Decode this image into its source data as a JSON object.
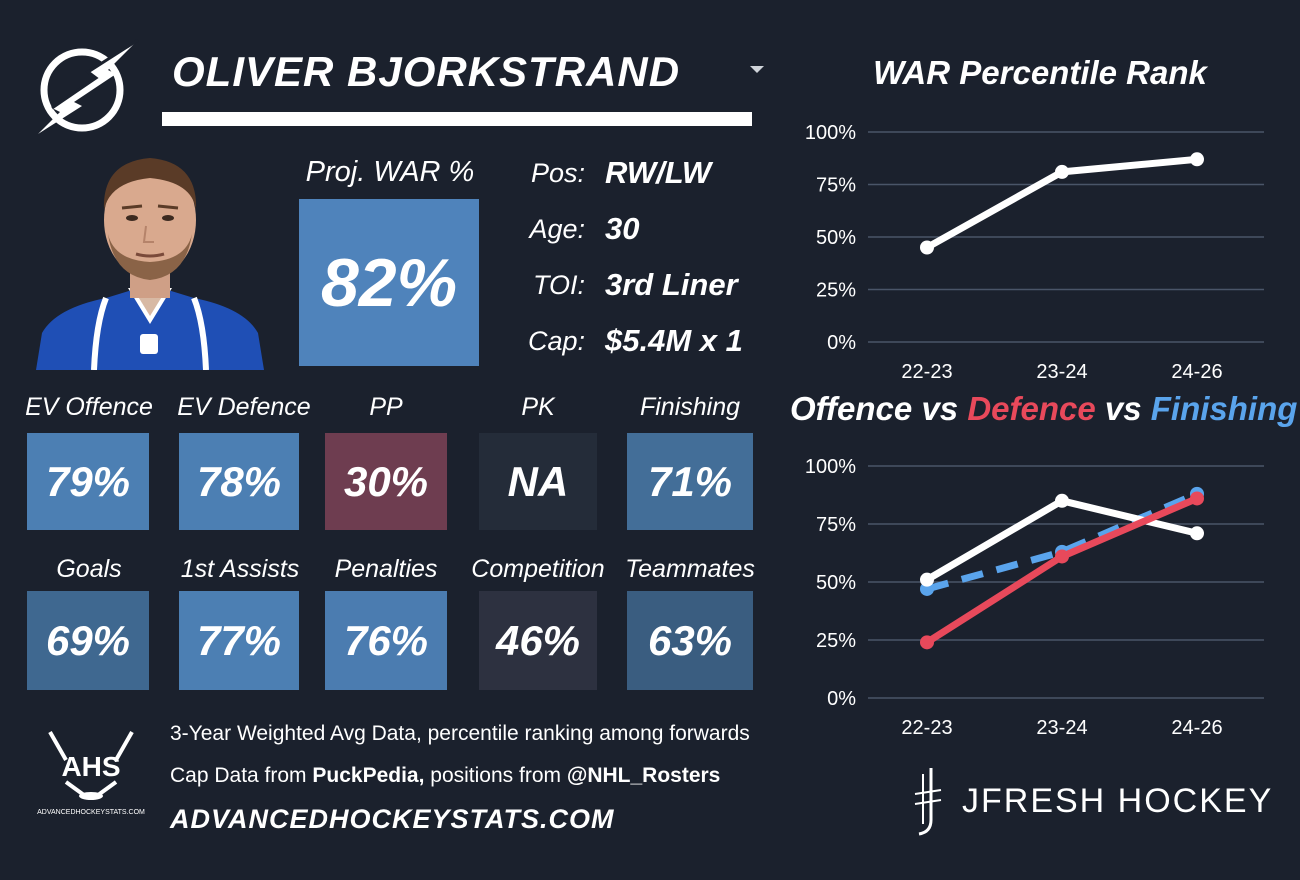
{
  "player": {
    "name": "OLIVER BJORKSTRAND",
    "proj_war_label": "Proj. WAR %",
    "proj_war_value": "82%",
    "proj_war_color": "#4f83bb",
    "info": [
      {
        "label": "Pos:",
        "value": "RW/LW"
      },
      {
        "label": "Age:",
        "value": "30"
      },
      {
        "label": "TOI:",
        "value": "3rd Liner"
      },
      {
        "label": "Cap:",
        "value": "$5.4M x 1"
      }
    ]
  },
  "tiles_row1": [
    {
      "label": "EV Offence",
      "value": "79%",
      "color": "#4c7fb3"
    },
    {
      "label": "EV Defence",
      "value": "78%",
      "color": "#4c7fb3"
    },
    {
      "label": "PP",
      "value": "30%",
      "color": "#6e3d50"
    },
    {
      "label": "PK",
      "value": "NA",
      "color": "#242c39"
    },
    {
      "label": "Finishing",
      "value": "71%",
      "color": "#436e98"
    }
  ],
  "tiles_row2": [
    {
      "label": "Goals",
      "value": "69%",
      "color": "#3f6890"
    },
    {
      "label": "1st Assists",
      "value": "77%",
      "color": "#4c7fb3"
    },
    {
      "label": "Penalties",
      "value": "76%",
      "color": "#4b7cb0"
    },
    {
      "label": "Competition",
      "value": "46%",
      "color": "#2d3140"
    },
    {
      "label": "Teammates",
      "value": "63%",
      "color": "#3a5d80"
    }
  ],
  "footer": {
    "logo_text": "AHS",
    "logo_subtext": "ADVANCEDHOCKEYSTATS.COM",
    "line1": "3-Year Weighted Avg Data, percentile ranking among forwards",
    "line2_prefix": "Cap Data from ",
    "line2_src1": "PuckPedia,",
    "line2_mid": " positions from ",
    "line2_src2": "@NHL_Rosters",
    "url": "ADVANCEDHOCKEYSTATS.COM",
    "brand": "JFRESH HOCKEY"
  },
  "chart_data": [
    {
      "type": "line",
      "title": "WAR Percentile Rank",
      "categories": [
        "22-23",
        "23-24",
        "24-26"
      ],
      "ylim": [
        0,
        100
      ],
      "yticks": [
        "0%",
        "25%",
        "50%",
        "75%",
        "100%"
      ],
      "series": [
        {
          "values": [
            45,
            81,
            87
          ],
          "color": "#ffffff",
          "dashed": false
        }
      ]
    },
    {
      "type": "line",
      "title_parts": [
        {
          "text": "Offence",
          "color": "#ffffff"
        },
        {
          "text": " vs ",
          "color": "#ffffff"
        },
        {
          "text": "Defence",
          "color": "#e8495b"
        },
        {
          "text": " vs ",
          "color": "#ffffff"
        },
        {
          "text": "Finishing",
          "color": "#5aa4ec"
        }
      ],
      "categories": [
        "22-23",
        "23-24",
        "24-26"
      ],
      "ylim": [
        0,
        100
      ],
      "yticks": [
        "0%",
        "25%",
        "50%",
        "75%",
        "100%"
      ],
      "series": [
        {
          "name": "Finishing",
          "values": [
            47,
            63,
            88
          ],
          "color": "#5aa4ec",
          "dashed": true
        },
        {
          "name": "Offence",
          "values": [
            51,
            85,
            71
          ],
          "color": "#ffffff",
          "dashed": false
        },
        {
          "name": "Defence",
          "values": [
            24,
            61,
            86
          ],
          "color": "#e8495b",
          "dashed": false
        }
      ]
    }
  ]
}
